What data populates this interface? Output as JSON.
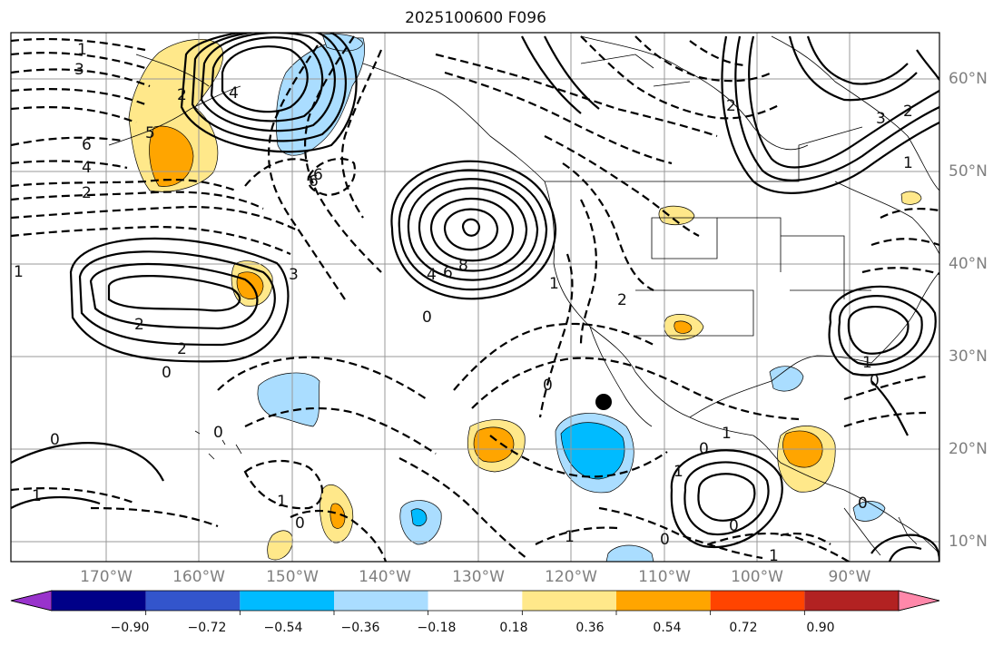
{
  "title": "2025100600 F096",
  "lat_labels": [
    "60°N",
    "50°N",
    "40°N",
    "30°N",
    "20°N",
    "10°N"
  ],
  "lon_labels": [
    "170°W",
    "160°W",
    "150°W",
    "140°W",
    "130°W",
    "120°W",
    "110°W",
    "100°W",
    "90°W"
  ],
  "colorbar": {
    "colors": [
      "#9933cc",
      "#000088",
      "#3355cc",
      "#00bbff",
      "#aaddff",
      "#ffffff",
      "#ffe88a",
      "#ffa500",
      "#ff4400",
      "#b22222",
      "#ff88aa"
    ],
    "tick_labels": [
      "−0.90",
      "−0.72",
      "−0.54",
      "−0.36",
      "−0.18",
      "0.18",
      "0.36",
      "0.54",
      "0.72",
      "0.90"
    ]
  },
  "contour_labels": [
    "1",
    "3",
    "2",
    "6",
    "4",
    "2",
    "1",
    "2",
    "2",
    "0",
    "0",
    "1",
    "4",
    "6",
    "8",
    "0",
    "4",
    "6",
    "5",
    "3",
    "0",
    "1",
    "2",
    "0",
    "1",
    "1",
    "0",
    "1",
    "1",
    "2",
    "3",
    "2",
    "1",
    "0",
    "0",
    "0",
    "0",
    "1",
    "0",
    "1",
    "6"
  ],
  "colors": {
    "pos_fill": "#ffe88a",
    "pos_fill2": "#ffa500",
    "neg_fill": "#aaddff",
    "neg_fill2": "#00bbff"
  }
}
